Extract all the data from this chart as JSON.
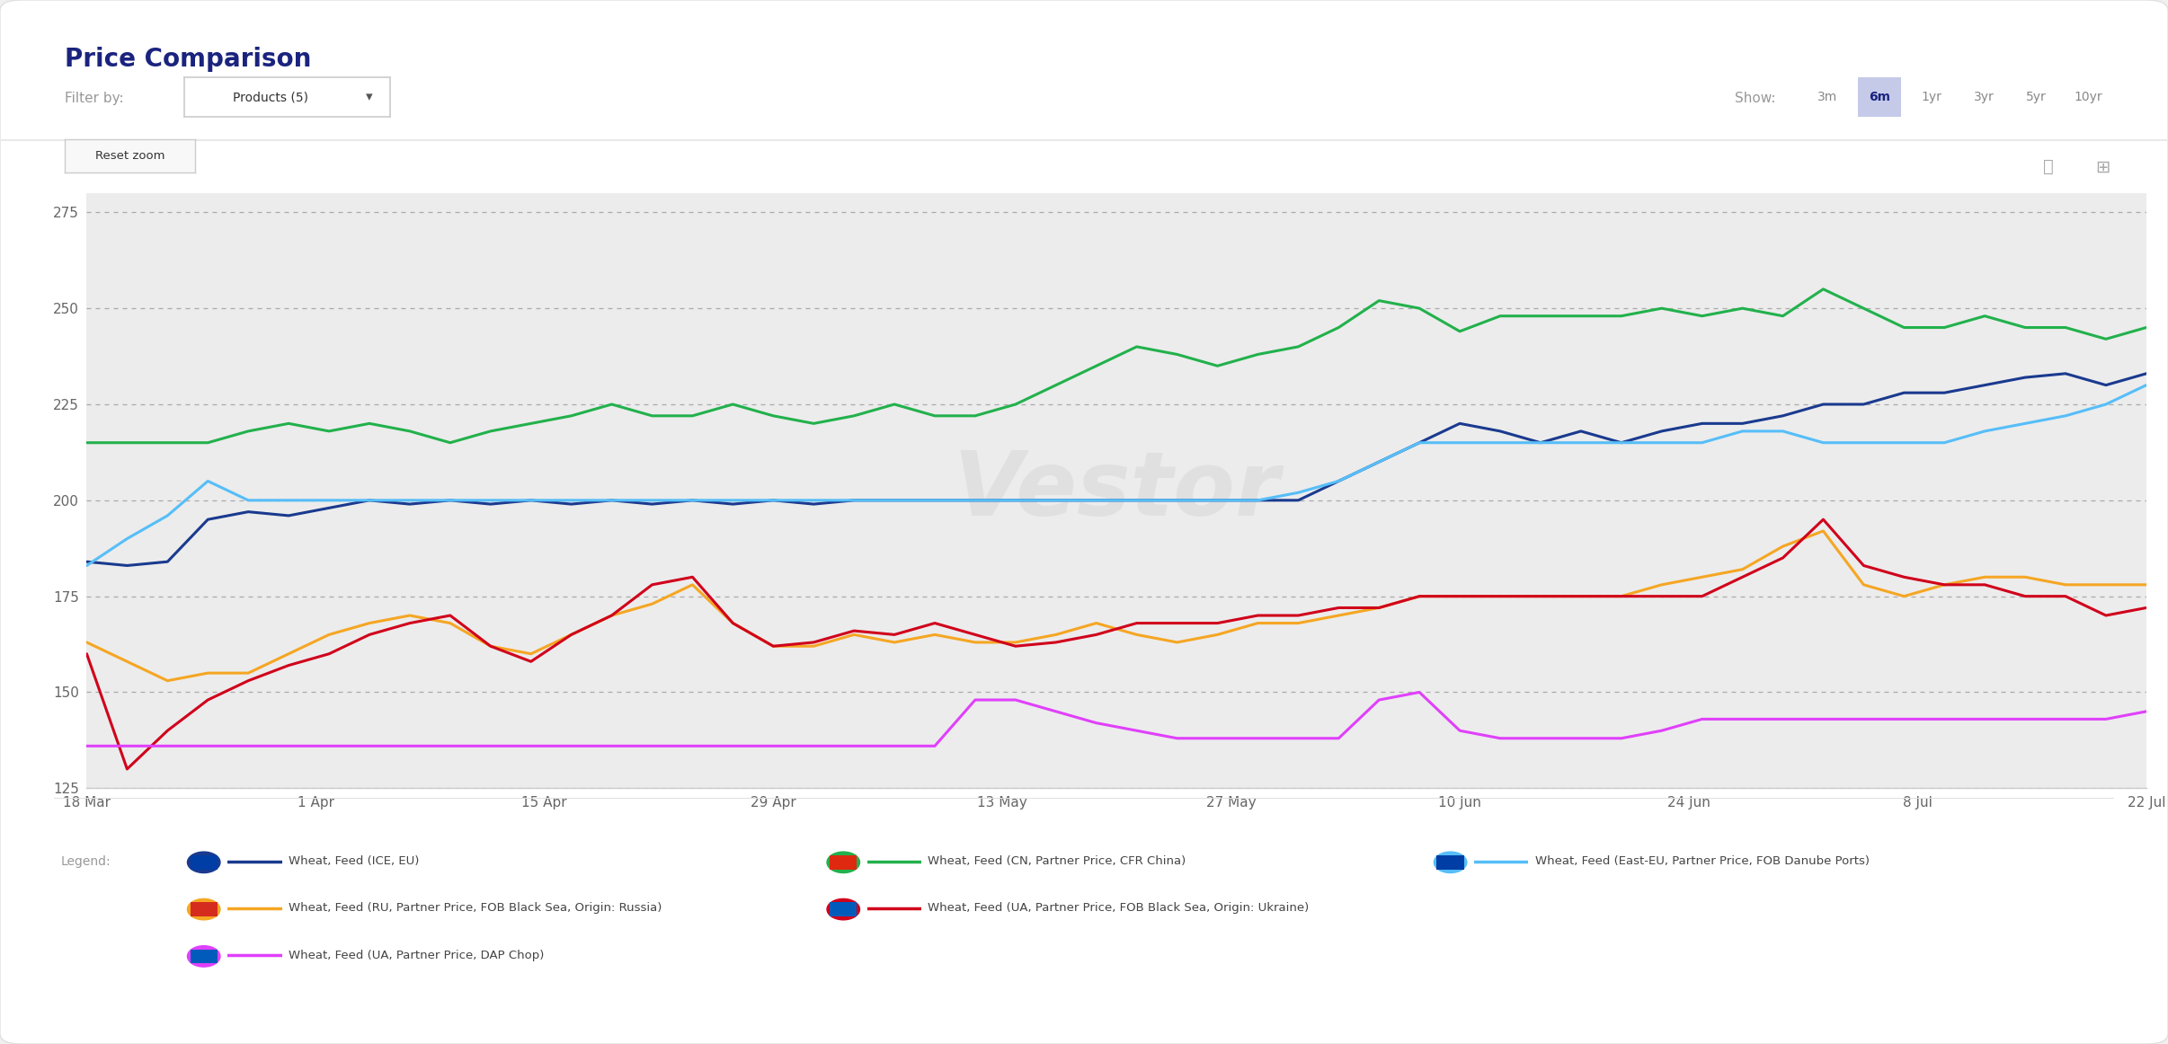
{
  "title": "Price Comparison",
  "background_color": "#f7f7f8",
  "plot_bg_color": "#efefef",
  "ylim": [
    125,
    280
  ],
  "yticks": [
    125,
    150,
    175,
    200,
    225,
    250,
    275
  ],
  "xlabel_dates": [
    "18 Mar",
    "1 Apr",
    "15 Apr",
    "29 Apr",
    "13 May",
    "27 May",
    "10 Jun",
    "24 Jun",
    "8 Jul",
    "22 Jul"
  ],
  "series": [
    {
      "label": "Wheat, Feed (ICE, EU)",
      "color": "#1a3a8f",
      "linewidth": 2.2,
      "values": [
        184,
        183,
        184,
        195,
        197,
        196,
        198,
        200,
        199,
        200,
        199,
        200,
        199,
        200,
        199,
        200,
        199,
        200,
        199,
        200,
        200,
        200,
        200,
        200,
        200,
        200,
        200,
        200,
        200,
        200,
        200,
        205,
        210,
        215,
        220,
        218,
        215,
        218,
        215,
        218,
        220,
        220,
        222,
        225,
        225,
        228,
        228,
        230,
        232,
        233,
        230,
        233
      ]
    },
    {
      "label": "Wheat, Feed (CN, Partner Price, CFR China)",
      "color": "#22b14c",
      "linewidth": 2.2,
      "values": [
        215,
        215,
        215,
        215,
        218,
        220,
        218,
        220,
        218,
        215,
        218,
        220,
        222,
        225,
        222,
        222,
        225,
        222,
        220,
        222,
        225,
        222,
        222,
        225,
        230,
        235,
        240,
        238,
        235,
        238,
        240,
        245,
        252,
        250,
        244,
        248,
        248,
        248,
        248,
        250,
        248,
        250,
        248,
        255,
        250,
        245,
        245,
        248,
        245,
        245,
        242,
        245
      ]
    },
    {
      "label": "Wheat, Feed (East-EU, Partner Price, FOB Danube Ports)",
      "color": "#56bef8",
      "linewidth": 2.2,
      "values": [
        183,
        190,
        196,
        205,
        200,
        200,
        200,
        200,
        200,
        200,
        200,
        200,
        200,
        200,
        200,
        200,
        200,
        200,
        200,
        200,
        200,
        200,
        200,
        200,
        200,
        200,
        200,
        200,
        200,
        200,
        202,
        205,
        210,
        215,
        215,
        215,
        215,
        215,
        215,
        215,
        215,
        218,
        218,
        215,
        215,
        215,
        215,
        218,
        220,
        222,
        225,
        230
      ]
    },
    {
      "label": "Wheat, Feed (RU, Partner Price, FOB Black Sea, Origin: Russia)",
      "color": "#f5a623",
      "linewidth": 2.2,
      "values": [
        163,
        158,
        153,
        155,
        155,
        160,
        165,
        168,
        170,
        168,
        162,
        160,
        165,
        170,
        173,
        178,
        168,
        162,
        162,
        165,
        163,
        165,
        163,
        163,
        165,
        168,
        165,
        163,
        165,
        168,
        168,
        170,
        172,
        175,
        175,
        175,
        175,
        175,
        175,
        178,
        180,
        182,
        188,
        192,
        178,
        175,
        178,
        180,
        180,
        178,
        178,
        178
      ]
    },
    {
      "label": "Wheat, Feed (UA, Partner Price, FOB Black Sea, Origin: Ukraine)",
      "color": "#d0021b",
      "linewidth": 2.2,
      "values": [
        160,
        130,
        140,
        148,
        153,
        157,
        160,
        165,
        168,
        170,
        162,
        158,
        165,
        170,
        178,
        180,
        168,
        162,
        163,
        166,
        165,
        168,
        165,
        162,
        163,
        165,
        168,
        168,
        168,
        170,
        170,
        172,
        172,
        175,
        175,
        175,
        175,
        175,
        175,
        175,
        175,
        180,
        185,
        195,
        183,
        180,
        178,
        178,
        175,
        175,
        170,
        172
      ]
    },
    {
      "label": "Wheat, Feed (UA, Partner Price, DAP Chop)",
      "color": "#e040fb",
      "linewidth": 2.2,
      "values": [
        136,
        136,
        136,
        136,
        136,
        136,
        136,
        136,
        136,
        136,
        136,
        136,
        136,
        136,
        136,
        136,
        136,
        136,
        136,
        136,
        136,
        136,
        148,
        148,
        145,
        142,
        140,
        138,
        138,
        138,
        138,
        138,
        148,
        150,
        140,
        138,
        138,
        138,
        138,
        140,
        143,
        143,
        143,
        143,
        143,
        143,
        143,
        143,
        143,
        143,
        143,
        145
      ]
    }
  ],
  "watermark": "Vestor",
  "n_points": 52,
  "show_labels": [
    "3m",
    "6m",
    "1yr",
    "3yr",
    "5yr",
    "10yr"
  ],
  "active_show": "6m",
  "filter_label": "Filter by:",
  "filter_value": "Products (5)",
  "reset_zoom_label": "Reset zoom",
  "legend_label": "Legend:",
  "legend_entries": [
    {
      "label": "Wheat, Feed (ICE, EU)",
      "line_color": "#1a3a8f",
      "dot_color": "#1a3a8f",
      "flag_color": "#003da5"
    },
    {
      "label": "Wheat, Feed (CN, Partner Price, CFR China)",
      "line_color": "#22b14c",
      "dot_color": "#22b14c",
      "flag_color": "#de2910"
    },
    {
      "label": "Wheat, Feed (East-EU, Partner Price, FOB Danube Ports)",
      "line_color": "#56bef8",
      "dot_color": "#56bef8",
      "flag_color": "#003da5"
    },
    {
      "label": "Wheat, Feed (RU, Partner Price, FOB Black Sea, Origin: Russia)",
      "line_color": "#f5a623",
      "dot_color": "#f5a623",
      "flag_color": "#d52b1e"
    },
    {
      "label": "Wheat, Feed (UA, Partner Price, FOB Black Sea, Origin: Ukraine)",
      "line_color": "#d0021b",
      "dot_color": "#d0021b",
      "flag_color": "#005bbb"
    },
    {
      "label": "Wheat, Feed (UA, Partner Price, DAP Chop)",
      "line_color": "#e040fb",
      "dot_color": "#e040fb",
      "flag_color": "#005bbb"
    }
  ]
}
